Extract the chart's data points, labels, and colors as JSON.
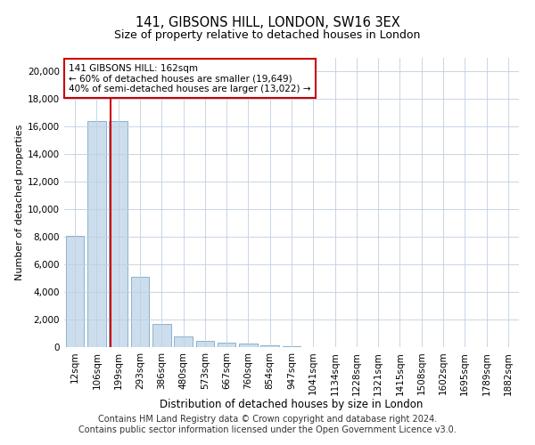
{
  "title1": "141, GIBSONS HILL, LONDON, SW16 3EX",
  "title2": "Size of property relative to detached houses in London",
  "xlabel": "Distribution of detached houses by size in London",
  "ylabel": "Number of detached properties",
  "categories": [
    "12sqm",
    "106sqm",
    "199sqm",
    "293sqm",
    "386sqm",
    "480sqm",
    "573sqm",
    "667sqm",
    "760sqm",
    "854sqm",
    "947sqm",
    "1041sqm",
    "1134sqm",
    "1228sqm",
    "1321sqm",
    "1415sqm",
    "1508sqm",
    "1602sqm",
    "1695sqm",
    "1789sqm",
    "1882sqm"
  ],
  "values": [
    8050,
    16400,
    16400,
    5100,
    1650,
    750,
    480,
    330,
    280,
    150,
    80,
    0,
    0,
    0,
    0,
    0,
    0,
    0,
    0,
    0,
    0
  ],
  "bar_color": "#ccdded",
  "bar_edge_color": "#7aaac8",
  "vline_x": 1.65,
  "vline_color": "#cc0000",
  "annotation_text": "141 GIBSONS HILL: 162sqm\n← 60% of detached houses are smaller (19,649)\n40% of semi-detached houses are larger (13,022) →",
  "annotation_box_color": "#ffffff",
  "annotation_box_edge": "#cc0000",
  "ylim": [
    0,
    21000
  ],
  "yticks": [
    0,
    2000,
    4000,
    6000,
    8000,
    10000,
    12000,
    14000,
    16000,
    18000,
    20000
  ],
  "footnote1": "Contains HM Land Registry data © Crown copyright and database right 2024.",
  "footnote2": "Contains public sector information licensed under the Open Government Licence v3.0.",
  "background_color": "#ffffff",
  "grid_color": "#c0cfe0",
  "title1_fontsize": 10.5,
  "title2_fontsize": 9,
  "xlabel_fontsize": 8.5,
  "ylabel_fontsize": 8,
  "tick_fontsize": 7.5,
  "annotation_fontsize": 7.5,
  "footnote_fontsize": 7
}
